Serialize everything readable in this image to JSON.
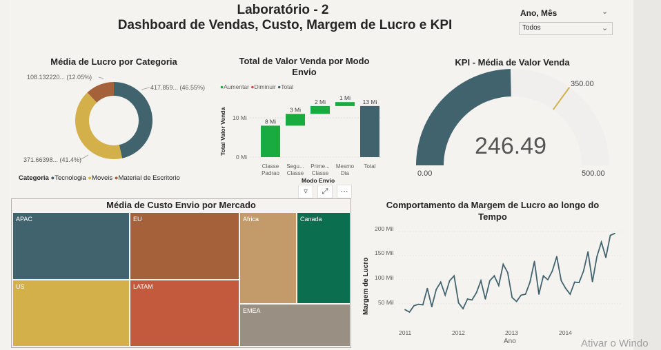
{
  "header": {
    "title": "Laboratório - 2",
    "subtitle": "Dashboard de Vendas, Custo, Margem de Lucro e KPI"
  },
  "slicer": {
    "label": "Ano, Mês",
    "value": "Todos"
  },
  "donut": {
    "title": "Média de Lucro por Categoria",
    "legend_title": "Categoria",
    "slices": [
      {
        "name": "Tecnologia",
        "label": "417.859... (46.55%)",
        "pct": 46.55,
        "color": "#41636d"
      },
      {
        "name": "Moveis",
        "label": "371.66398... (41.4%)",
        "pct": 41.4,
        "color": "#d3b04a"
      },
      {
        "name": "Material de Escritorio",
        "label": "108.132220... (12.05%)",
        "pct": 12.05,
        "color": "#a4613a"
      }
    ]
  },
  "waterfall": {
    "title_line1": "Total de Valor Venda por Modo",
    "title_line2": "Envio",
    "legend": [
      {
        "label": "Aumentar",
        "color": "#1aab40"
      },
      {
        "label": "Diminuir",
        "color": "#d64550"
      },
      {
        "label": "Total",
        "color": "#41636d"
      }
    ],
    "ylabel": "Total Valor Venda",
    "xlabel": "Modo Envio",
    "yticks": [
      "0 Mi",
      "10 Mi"
    ]
  },
  "kpi": {
    "title": "KPI - Média de Valor Venda",
    "value_text": "246.49",
    "min_label": "0.00",
    "max_label": "500.00",
    "target_label": "350.00"
  },
  "treemap": {
    "title": "Média de Custo Envio por Mercado",
    "tiles": [
      {
        "label": "APAC",
        "color": "#41636d"
      },
      {
        "label": "EU",
        "color": "#a4613a"
      },
      {
        "label": "US",
        "color": "#d3b04a"
      },
      {
        "label": "LATAM",
        "color": "#c35a3e"
      },
      {
        "label": "Africa",
        "color": "#c39b6b"
      },
      {
        "label": "Canada",
        "color": "#0b6e4f"
      },
      {
        "label": "EMEA",
        "color": "#9a8f83"
      }
    ]
  },
  "line": {
    "title_line1": "Comportamento da Margem de Lucro ao longo do",
    "title_line2": "Tempo",
    "ylabel": "Margem de Lucro",
    "xlabel": "Ano",
    "yticks": [
      "50 Mil",
      "100 Mil",
      "150 Mil",
      "200 Mil"
    ],
    "xticks": [
      "2011",
      "2012",
      "2013",
      "2014"
    ]
  },
  "watermark": "Ativar o Windo",
  "chart_data": [
    {
      "type": "pie",
      "title": "Média de Lucro por Categoria",
      "categories": [
        "Tecnologia",
        "Moveis",
        "Material de Escritorio"
      ],
      "values": [
        46.55,
        41.4,
        12.05
      ]
    },
    {
      "type": "bar",
      "title": "Total de Valor Venda por Modo Envio",
      "categories": [
        "Classe Padrao",
        "Segunda Classe",
        "Primeira Classe",
        "Mesmo Dia",
        "Total"
      ],
      "values": [
        8,
        3,
        2,
        1,
        13
      ],
      "value_labels": [
        "8 Mi",
        "3 Mi",
        "2 Mi",
        "1 Mi",
        "13 Mi"
      ],
      "xlabel": "Modo Envio",
      "ylabel": "Total Valor Venda",
      "ylim": [
        0,
        15
      ]
    },
    {
      "type": "bar",
      "title": "Média de Custo Envio por Mercado",
      "categories": [
        "APAC",
        "EU",
        "US",
        "LATAM",
        "Africa",
        "Canada",
        "EMEA"
      ],
      "values": [
        28,
        26,
        31,
        25,
        22,
        22,
        16
      ]
    },
    {
      "type": "line",
      "title": "Comportamento da Margem de Lucro ao longo do Tempo",
      "xlabel": "Ano",
      "ylabel": "Margem de Lucro",
      "ylim": [
        0,
        215
      ],
      "series": [
        {
          "values": [
            38,
            33,
            46,
            49,
            48,
            82,
            44,
            80,
            95,
            68,
            98,
            108,
            52,
            40,
            60,
            58,
            73,
            98,
            60,
            98,
            108,
            88,
            132,
            115,
            63,
            55,
            68,
            70,
            95,
            138,
            70,
            108,
            100,
            118,
            148,
            98,
            82,
            70,
            95,
            94,
            118,
            158,
            96,
            148,
            178,
            146,
            192,
            196
          ]
        }
      ]
    }
  ]
}
